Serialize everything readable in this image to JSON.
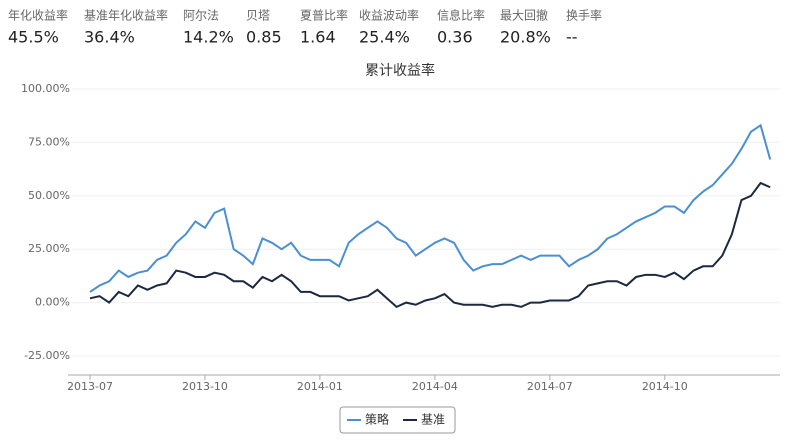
{
  "stats": [
    {
      "label": "年化收益率",
      "value": "45.5%"
    },
    {
      "label": "基准年化收益率",
      "value": "36.4%"
    },
    {
      "label": "阿尔法",
      "value": "14.2%"
    },
    {
      "label": "贝塔",
      "value": "0.85"
    },
    {
      "label": "夏普比率",
      "value": "1.64"
    },
    {
      "label": "收益波动率",
      "value": "25.4%"
    },
    {
      "label": "信息比率",
      "value": "0.36"
    },
    {
      "label": "最大回撤",
      "value": "20.8%"
    },
    {
      "label": "换手率",
      "value": "--"
    }
  ],
  "chart_data": {
    "type": "line",
    "title": "累计收益率",
    "categories": [
      "2013-07",
      null,
      null,
      null,
      null,
      null,
      null,
      null,
      null,
      null,
      null,
      null,
      "2013-10",
      null,
      null,
      null,
      null,
      null,
      null,
      null,
      null,
      null,
      null,
      null,
      "2014-01",
      null,
      null,
      null,
      null,
      null,
      null,
      null,
      null,
      null,
      null,
      null,
      "2014-04",
      null,
      null,
      null,
      null,
      null,
      null,
      null,
      null,
      null,
      null,
      null,
      "2014-07",
      null,
      null,
      null,
      null,
      null,
      null,
      null,
      null,
      null,
      null,
      null,
      "2014-10",
      null,
      null,
      null,
      null,
      null,
      null,
      null,
      null,
      null,
      null,
      null
    ],
    "series": [
      {
        "name": "策略",
        "color": "#4a8fd1",
        "values": [
          5,
          8,
          10,
          15,
          12,
          14,
          15,
          20,
          22,
          28,
          32,
          38,
          35,
          42,
          44,
          25,
          22,
          18,
          30,
          28,
          25,
          28,
          22,
          20,
          20,
          20,
          17,
          28,
          32,
          35,
          38,
          35,
          30,
          28,
          22,
          25,
          28,
          30,
          28,
          20,
          15,
          17,
          18,
          18,
          20,
          22,
          20,
          22,
          22,
          22,
          17,
          20,
          22,
          25,
          30,
          32,
          35,
          38,
          40,
          42,
          45,
          45,
          42,
          48,
          52,
          55,
          60,
          65,
          72,
          80,
          83,
          67
        ]
      },
      {
        "name": "基准",
        "color": "#1b2940",
        "values": [
          2,
          3,
          0,
          5,
          3,
          8,
          6,
          8,
          9,
          15,
          14,
          12,
          12,
          14,
          13,
          10,
          10,
          7,
          12,
          10,
          13,
          10,
          5,
          5,
          3,
          3,
          3,
          1,
          2,
          3,
          6,
          2,
          -2,
          0,
          -1,
          1,
          2,
          4,
          0,
          -1,
          -1,
          -1,
          -2,
          -1,
          -1,
          -2,
          0,
          0,
          1,
          1,
          1,
          3,
          8,
          9,
          10,
          10,
          8,
          12,
          13,
          13,
          12,
          14,
          11,
          15,
          17,
          17,
          22,
          32,
          48,
          50,
          56,
          54
        ]
      }
    ],
    "ylim": [
      -35,
      100
    ],
    "yticks": [
      {
        "value": -25,
        "label": "-25.00%"
      },
      {
        "value": 0,
        "label": "0.00%"
      },
      {
        "value": 25,
        "label": "25.00%"
      },
      {
        "value": 50,
        "label": "50.00%"
      },
      {
        "value": 75,
        "label": "75.00%"
      },
      {
        "value": 100,
        "label": "100.00%"
      }
    ],
    "grid": true
  }
}
